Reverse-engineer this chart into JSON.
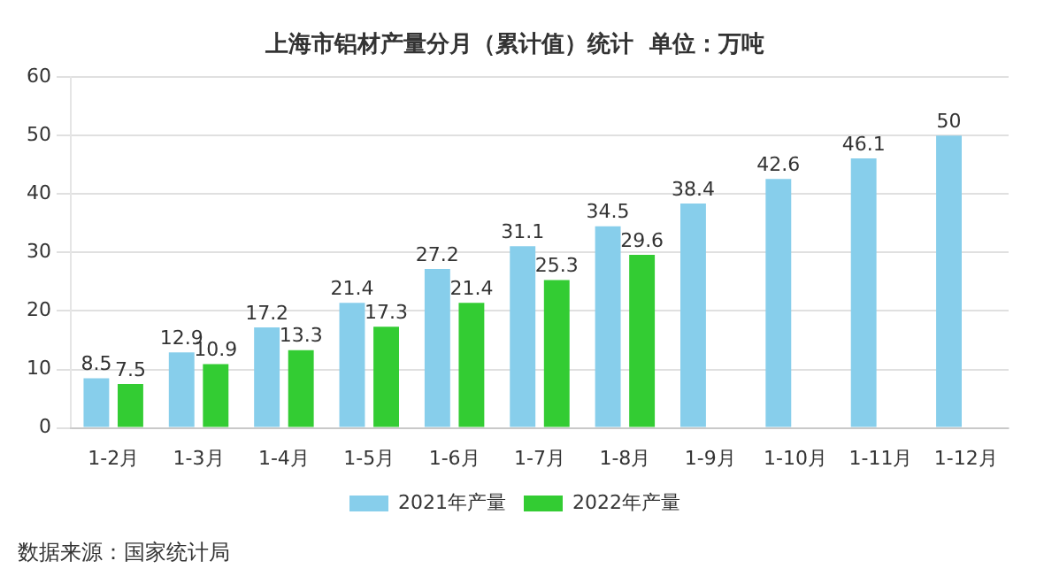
{
  "chart_data": {
    "type": "bar",
    "title": "上海市铝材产量分月（累计值）统计  单位：万吨",
    "categories": [
      "1-2月",
      "1-3月",
      "1-4月",
      "1-5月",
      "1-6月",
      "1-7月",
      "1-8月",
      "1-9月",
      "1-10月",
      "1-11月",
      "1-12月"
    ],
    "series": [
      {
        "name": "2021年产量",
        "color": "#87ceeb",
        "values": [
          8.5,
          12.9,
          17.2,
          21.4,
          27.2,
          31.1,
          34.5,
          38.4,
          42.6,
          46.1,
          50
        ]
      },
      {
        "name": "2022年产量",
        "color": "#33cc33",
        "values": [
          7.5,
          10.9,
          13.3,
          17.3,
          21.4,
          25.3,
          29.6,
          null,
          null,
          null,
          null
        ]
      }
    ],
    "ylim": [
      0,
      60
    ],
    "yticks": [
      0,
      10,
      20,
      30,
      40,
      50,
      60
    ],
    "grid": "y",
    "legend": "bottom",
    "data_labels": true,
    "annotations": [
      "数据来源：国家统计局"
    ]
  }
}
